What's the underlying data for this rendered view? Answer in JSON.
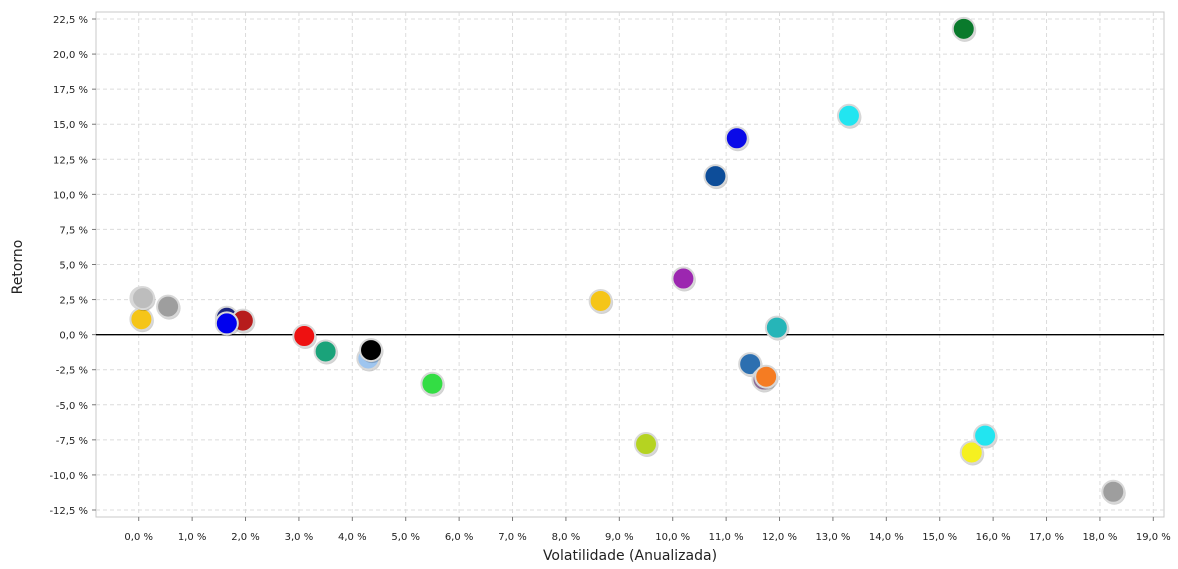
{
  "chart_data": {
    "type": "scatter",
    "title": "",
    "xlabel": "Volatilidade (Anualizada)",
    "ylabel": "Retorno",
    "xlim": [
      -0.8,
      19.2
    ],
    "ylim": [
      -13.0,
      23.0
    ],
    "x_ticks": [
      {
        "value": 0,
        "label": "0,0 %"
      },
      {
        "value": 1,
        "label": "1,0 %"
      },
      {
        "value": 2,
        "label": "2,0 %"
      },
      {
        "value": 3,
        "label": "3,0 %"
      },
      {
        "value": 4,
        "label": "4,0 %"
      },
      {
        "value": 5,
        "label": "5,0 %"
      },
      {
        "value": 6,
        "label": "6,0 %"
      },
      {
        "value": 7,
        "label": "7,0 %"
      },
      {
        "value": 8,
        "label": "8,0 %"
      },
      {
        "value": 9,
        "label": "9,0 %"
      },
      {
        "value": 10,
        "label": "10,0 %"
      },
      {
        "value": 11,
        "label": "11,0 %"
      },
      {
        "value": 12,
        "label": "12,0 %"
      },
      {
        "value": 13,
        "label": "13,0 %"
      },
      {
        "value": 14,
        "label": "14,0 %"
      },
      {
        "value": 15,
        "label": "15,0 %"
      },
      {
        "value": 16,
        "label": "16,0 %"
      },
      {
        "value": 17,
        "label": "17,0 %"
      },
      {
        "value": 18,
        "label": "18,0 %"
      },
      {
        "value": 19,
        "label": "19,0 %"
      }
    ],
    "y_ticks": [
      {
        "value": 22.5,
        "label": "22,5 %"
      },
      {
        "value": 20.0,
        "label": "20,0 %"
      },
      {
        "value": 17.5,
        "label": "17,5 %"
      },
      {
        "value": 15.0,
        "label": "15,0 %"
      },
      {
        "value": 12.5,
        "label": "12,5 %"
      },
      {
        "value": 10.0,
        "label": "10,0 %"
      },
      {
        "value": 7.5,
        "label": "7,5 %"
      },
      {
        "value": 5.0,
        "label": "5,0 %"
      },
      {
        "value": 2.5,
        "label": "2,5 %"
      },
      {
        "value": 0.0,
        "label": "0,0 %"
      },
      {
        "value": -2.5,
        "label": "-2,5 %"
      },
      {
        "value": -5.0,
        "label": "-5,0 %"
      },
      {
        "value": -7.5,
        "label": "-7,5 %"
      },
      {
        "value": -10.0,
        "label": "-10,0 %"
      },
      {
        "value": -12.5,
        "label": "-12,5 %"
      }
    ],
    "grid": true,
    "zero_line": true,
    "legend": "none",
    "points": [
      {
        "x": 0.05,
        "y": 2.6,
        "color": "#cc33cc"
      },
      {
        "x": 0.05,
        "y": 1.1,
        "color": "#f5c518"
      },
      {
        "x": 0.08,
        "y": 2.6,
        "color": "#bdbdbd"
      },
      {
        "x": 0.55,
        "y": 2.0,
        "color": "#9e9e9e"
      },
      {
        "x": 1.65,
        "y": 1.2,
        "color": "#1a237e"
      },
      {
        "x": 1.95,
        "y": 1.0,
        "color": "#b71c1c"
      },
      {
        "x": 1.65,
        "y": 0.8,
        "color": "#0000ee"
      },
      {
        "x": 3.1,
        "y": -0.1,
        "color": "#ee1111"
      },
      {
        "x": 3.5,
        "y": -1.2,
        "color": "#1aa37a"
      },
      {
        "x": 4.3,
        "y": -1.7,
        "color": "#9ec5ef"
      },
      {
        "x": 4.35,
        "y": -1.1,
        "color": "#000000"
      },
      {
        "x": 5.5,
        "y": -3.5,
        "color": "#33dd44"
      },
      {
        "x": 8.65,
        "y": 2.4,
        "color": "#f5c518"
      },
      {
        "x": 9.5,
        "y": -7.8,
        "color": "#b5d321"
      },
      {
        "x": 10.2,
        "y": 4.0,
        "color": "#9c27b0"
      },
      {
        "x": 10.8,
        "y": 11.3,
        "color": "#0d4d99"
      },
      {
        "x": 11.2,
        "y": 14.0,
        "color": "#0a0ae8"
      },
      {
        "x": 11.45,
        "y": -2.1,
        "color": "#2c6fb0"
      },
      {
        "x": 11.7,
        "y": -3.2,
        "color": "#8d6e97"
      },
      {
        "x": 11.75,
        "y": -3.0,
        "color": "#f57c22"
      },
      {
        "x": 11.95,
        "y": 0.5,
        "color": "#26b5b8"
      },
      {
        "x": 13.3,
        "y": 15.6,
        "color": "#22e5f0"
      },
      {
        "x": 15.45,
        "y": 21.8,
        "color": "#0a7a2c"
      },
      {
        "x": 15.6,
        "y": -8.4,
        "color": "#f5f020"
      },
      {
        "x": 15.85,
        "y": -7.2,
        "color": "#22e5f0"
      },
      {
        "x": 18.25,
        "y": -11.2,
        "color": "#9e9e9e"
      }
    ]
  }
}
